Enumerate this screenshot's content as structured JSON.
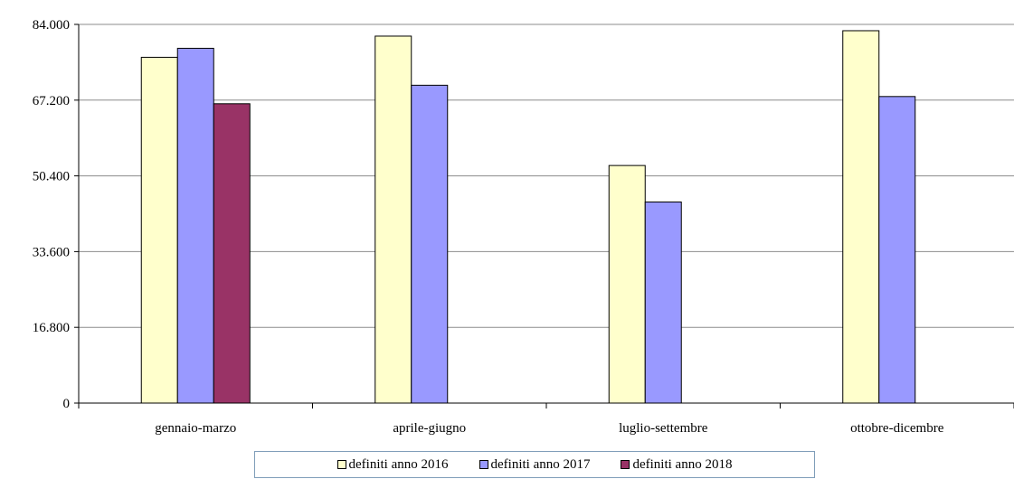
{
  "chart_data": {
    "type": "bar",
    "categories": [
      "gennaio-marzo",
      "aprile-giugno",
      "luglio-settembre",
      "ottobre-dicembre"
    ],
    "series": [
      {
        "name": "definiti anno 2016",
        "color": "#ffffcc",
        "values": [
          76700,
          81400,
          52700,
          82600
        ]
      },
      {
        "name": "definiti anno 2017",
        "color": "#9999ff",
        "values": [
          78700,
          70500,
          44600,
          68000
        ]
      },
      {
        "name": "definiti anno 2018",
        "color": "#993366",
        "values": [
          66400,
          null,
          null,
          null
        ]
      }
    ],
    "yticks": [
      "0",
      "16.800",
      "33.600",
      "50.400",
      "67.200",
      "84.000"
    ],
    "ylim": [
      0,
      84000
    ],
    "grid": true,
    "legend_position": "bottom"
  }
}
